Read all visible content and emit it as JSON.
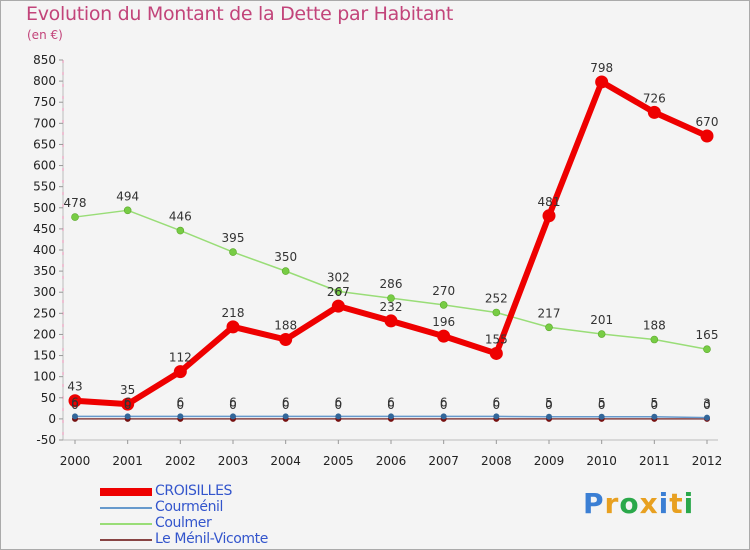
{
  "title": "Evolution du Montant de la Dette par Habitant",
  "unit": "(en €)",
  "brand": {
    "text": "Proxiti",
    "letter_colors": [
      "#3b7fd4",
      "#e8a020",
      "#2aa84a",
      "#e8a020",
      "#3b7fd4",
      "#e8a020",
      "#2aa84a"
    ]
  },
  "chart_data": {
    "type": "line",
    "title": "Evolution du Montant de la Dette par Habitant",
    "ylabel": "(en €)",
    "xlabel": "",
    "x": [
      "2000",
      "2001",
      "2002",
      "2003",
      "2004",
      "2005",
      "2006",
      "2007",
      "2008",
      "2009",
      "2010",
      "2011",
      "2012"
    ],
    "ylim": [
      -50,
      850
    ],
    "yticks": [
      -50,
      0,
      50,
      100,
      150,
      200,
      250,
      300,
      350,
      400,
      450,
      500,
      550,
      600,
      650,
      700,
      750,
      800,
      850
    ],
    "grid": false,
    "series": [
      {
        "name": "CROISILLES",
        "color": "#ee0000",
        "marker": "#ee0000",
        "values": [
          43,
          35,
          112,
          218,
          188,
          267,
          232,
          196,
          155,
          481,
          798,
          726,
          670
        ],
        "labels": [
          "43",
          "35",
          "112",
          "218",
          "188",
          "267",
          "232",
          "196",
          "155",
          "481",
          "798",
          "726",
          "670"
        ]
      },
      {
        "name": "Courménil",
        "color": "#6699cc",
        "marker": "#336699",
        "values": [
          6,
          6,
          6,
          6,
          6,
          6,
          6,
          6,
          6,
          5,
          5,
          5,
          3
        ],
        "labels": [
          "6",
          "6",
          "6",
          "6",
          "6",
          "6",
          "6",
          "6",
          "6",
          "5",
          "5",
          "5",
          "3"
        ]
      },
      {
        "name": "Coulmer",
        "color": "#99dd77",
        "marker": "#77cc44",
        "values": [
          478,
          494,
          446,
          395,
          350,
          302,
          286,
          270,
          252,
          217,
          201,
          188,
          165
        ],
        "labels": [
          "478",
          "494",
          "446",
          "395",
          "350",
          "302",
          "286",
          "270",
          "252",
          "217",
          "201",
          "188",
          "165"
        ]
      },
      {
        "name": "Le Ménil-Vicomte",
        "color": "#884444",
        "marker": "#771111",
        "values": [
          0,
          0,
          0,
          0,
          0,
          0,
          0,
          0,
          0,
          0,
          0,
          0,
          0
        ],
        "labels": [
          "0",
          "0",
          "0",
          "0",
          "0",
          "0",
          "0",
          "0",
          "0",
          "0",
          "0",
          "0",
          "0"
        ]
      }
    ],
    "legend": "bottom-left"
  }
}
